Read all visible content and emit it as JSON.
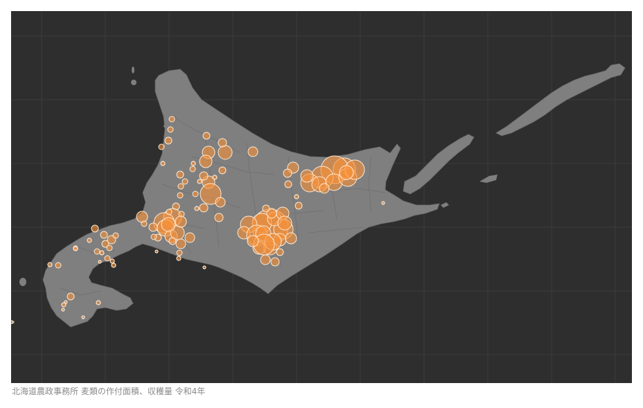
{
  "caption": "北海道農政事務所 麦類の作付面積、収穫量 令和4年",
  "colors": {
    "background": "#2e2e2e",
    "land": "#7f7f7f",
    "grid": "#3c3c3c",
    "borders": "#6e6e6e",
    "bubble_fill": "#f5913a",
    "bubble_stroke": "#fde9d4"
  }
}
